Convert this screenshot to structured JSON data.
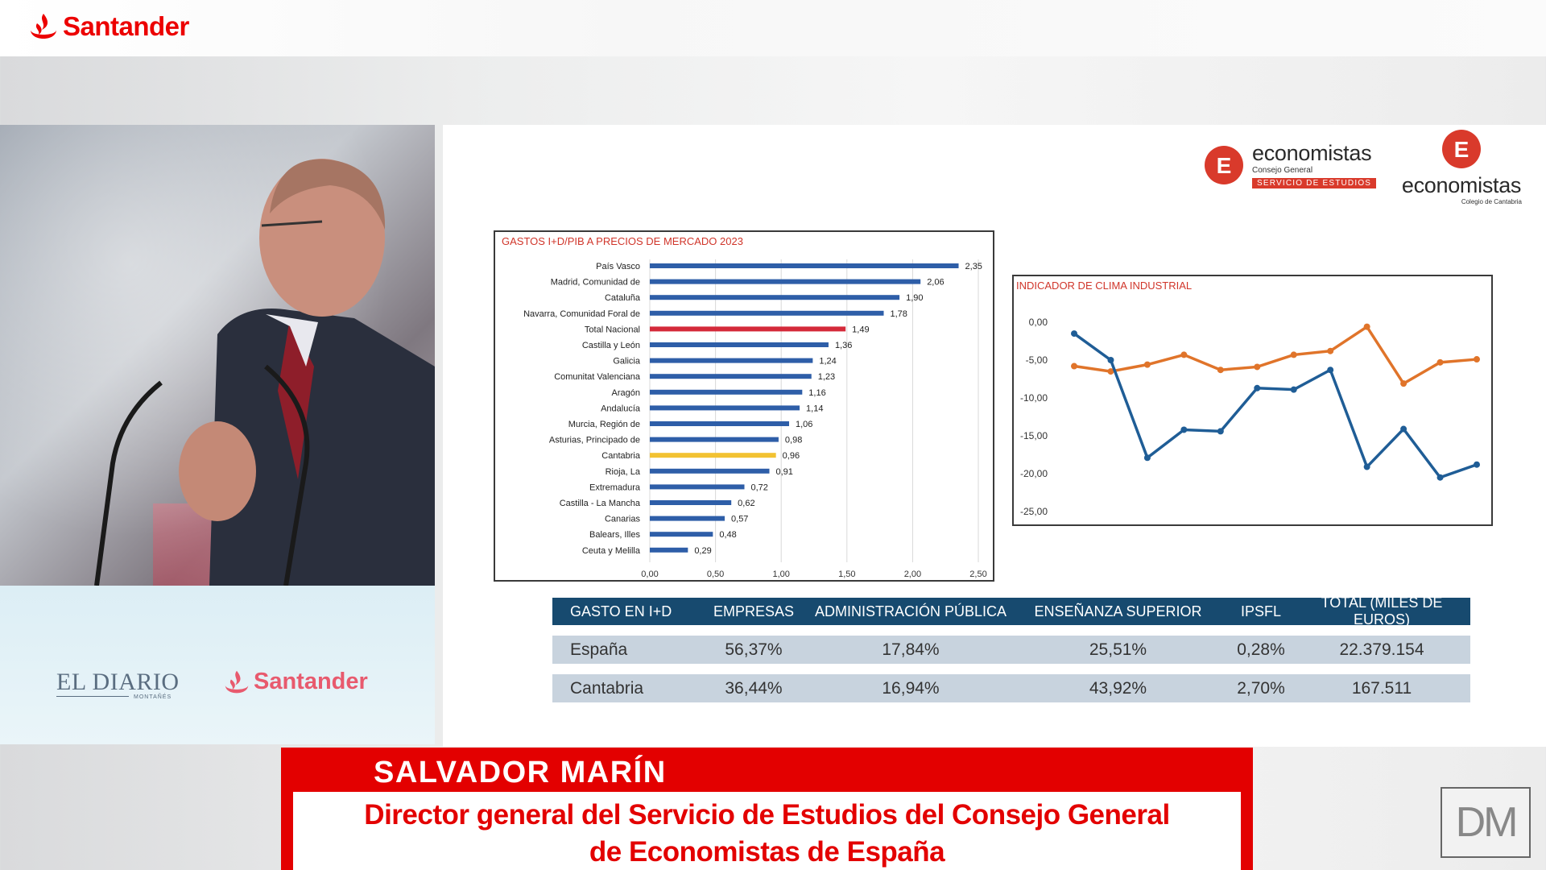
{
  "header": {
    "brand": "Santander"
  },
  "sponsors": {
    "eldiario": "EL DIARIO",
    "eldiario_sub": "MONTAÑÉS",
    "santander": "Santander"
  },
  "logos": {
    "econ_general": {
      "word": "economistas",
      "sub": "Consejo General",
      "band": "SERVICIO DE ESTUDIOS"
    },
    "econ_cantabria": {
      "word": "economistas",
      "sub": "Colegio de Cantabria"
    }
  },
  "bar_chart": {
    "title": "GASTOS I+D/PIB A PRECIOS DE MERCADO 2023",
    "ticks": [
      "0,00",
      "0,50",
      "1,00",
      "1,50",
      "2,00",
      "2,50"
    ]
  },
  "line_chart": {
    "title": "INDICADOR DE CLIMA INDUSTRIAL",
    "ticks": [
      "0,00",
      "-5,00",
      "-10,00",
      "-15,00",
      "-20,00",
      "-25,00"
    ]
  },
  "chart_data": [
    {
      "type": "bar",
      "orientation": "horizontal",
      "title": "GASTOS I+D/PIB A PRECIOS DE MERCADO 2023",
      "categories": [
        "País Vasco",
        "Madrid, Comunidad de",
        "Cataluña",
        "Navarra, Comunidad Foral de",
        "Total Nacional",
        "Castilla y León",
        "Galicia",
        "Comunitat Valenciana",
        "Aragón",
        "Andalucía",
        "Murcia, Región de",
        "Asturias, Principado de",
        "Cantabria",
        "Rioja, La",
        "Extremadura",
        "Castilla - La Mancha",
        "Canarias",
        "Balears, Illes",
        "Ceuta y Melilla"
      ],
      "values": [
        2.35,
        2.06,
        1.9,
        1.78,
        1.49,
        1.36,
        1.24,
        1.23,
        1.16,
        1.14,
        1.06,
        0.98,
        0.96,
        0.91,
        0.72,
        0.62,
        0.57,
        0.48,
        0.29
      ],
      "value_labels": [
        "2,35",
        "2,06",
        "1,90",
        "1,78",
        "1,49",
        "1,36",
        "1,24",
        "1,23",
        "1,16",
        "1,14",
        "1,06",
        "0,98",
        "0,96",
        "0,91",
        "0,72",
        "0,62",
        "0,57",
        "0,48",
        "0,29"
      ],
      "xlim": [
        0,
        2.5
      ],
      "grid": true,
      "colors": {
        "default": "#2e5ea8",
        "highlight_total": "#d42a3a",
        "highlight_cantabria": "#f2c232"
      },
      "highlight": {
        "Total Nacional": "highlight_total",
        "Cantabria": "highlight_cantabria"
      }
    },
    {
      "type": "line",
      "title": "INDICADOR DE CLIMA INDUSTRIAL",
      "ylim": [
        -25,
        0
      ],
      "grid": false,
      "series": [
        {
          "color": "#e0742a",
          "values": [
            -5.8,
            -6.5,
            -5.6,
            -4.3,
            -6.3,
            -5.9,
            -4.3,
            -3.8,
            -0.6,
            -8.1,
            -5.3,
            -4.9
          ]
        },
        {
          "color": "#1f5d96",
          "values": [
            -1.5,
            -5.0,
            -17.9,
            -14.2,
            -14.4,
            -8.7,
            -8.9,
            -6.3,
            -19.1,
            -14.1,
            -20.5,
            -18.8
          ]
        }
      ]
    }
  ],
  "table": {
    "headers": [
      "GASTO EN I+D",
      "EMPRESAS",
      "ADMINISTRACIÓN PÚBLICA",
      "ENSEÑANZA SUPERIOR",
      "IPSFL",
      "TOTAL (MILES DE EUROS)"
    ],
    "rows": [
      [
        "España",
        "56,37%",
        "17,84%",
        "25,51%",
        "0,28%",
        "22.379.154"
      ],
      [
        "Cantabria",
        "36,44%",
        "16,94%",
        "43,92%",
        "2,70%",
        "167.511"
      ]
    ]
  },
  "lower_third": {
    "name": "SALVADOR MARÍN",
    "role_line1": "Director general del Servicio de Estudios del Consejo General",
    "role_line2": "de Economistas de España"
  },
  "badge": "DM"
}
